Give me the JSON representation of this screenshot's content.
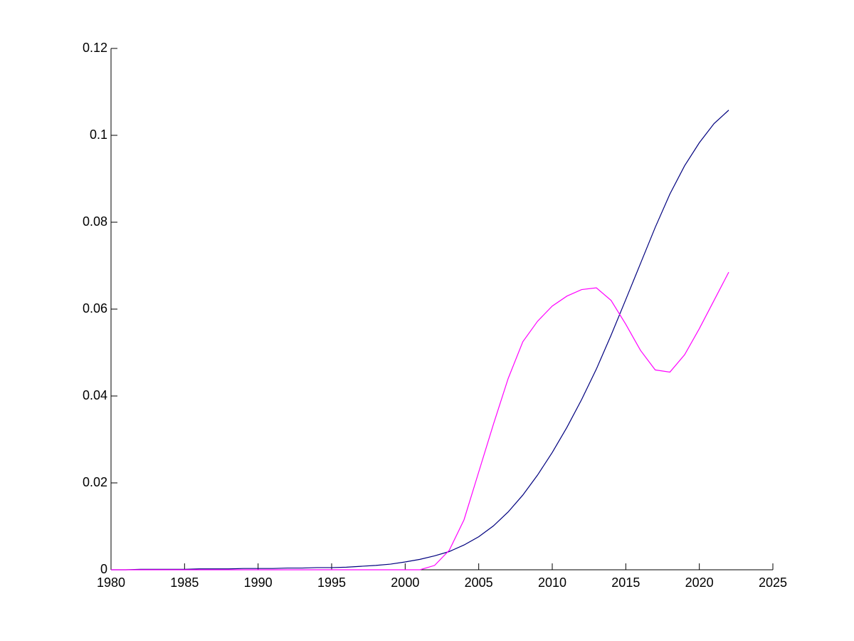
{
  "chart_data": {
    "type": "line",
    "x": [
      1980,
      1981,
      1982,
      1983,
      1984,
      1985,
      1986,
      1987,
      1988,
      1989,
      1990,
      1991,
      1992,
      1993,
      1994,
      1995,
      1996,
      1997,
      1998,
      1999,
      2000,
      2001,
      2002,
      2003,
      2004,
      2005,
      2006,
      2007,
      2008,
      2009,
      2010,
      2011,
      2012,
      2013,
      2014,
      2015,
      2016,
      2017,
      2018,
      2019,
      2020,
      2021,
      2022
    ],
    "series": [
      {
        "color": "#00007f",
        "values": [
          0,
          0,
          0.0001,
          0.0001,
          0.0001,
          0.0001,
          0.0002,
          0.0002,
          0.0002,
          0.0003,
          0.0003,
          0.0003,
          0.0004,
          0.0004,
          0.0005,
          0.0005,
          0.0006,
          0.0008,
          0.001,
          0.0013,
          0.0018,
          0.0024,
          0.0032,
          0.0042,
          0.0057,
          0.0076,
          0.0101,
          0.0133,
          0.0172,
          0.0218,
          0.027,
          0.0328,
          0.0392,
          0.0462,
          0.054,
          0.0622,
          0.0705,
          0.0788,
          0.0865,
          0.093,
          0.0983,
          0.1027,
          0.1058
        ]
      },
      {
        "color": "#ff00ff",
        "values": [
          0,
          0,
          0,
          0,
          0,
          0,
          0,
          0,
          0,
          0,
          0,
          0,
          0,
          0,
          0,
          0,
          0,
          0,
          0,
          0,
          0,
          0,
          0.001,
          0.0045,
          0.0115,
          0.0225,
          0.0335,
          0.044,
          0.0525,
          0.0572,
          0.0607,
          0.063,
          0.0645,
          0.0649,
          0.062,
          0.0565,
          0.0505,
          0.046,
          0.0455,
          0.0495,
          0.0555,
          0.062,
          0.0685
        ]
      }
    ],
    "xlim": [
      1980,
      2025
    ],
    "xticks": [
      1980,
      1985,
      1990,
      1995,
      2000,
      2005,
      2010,
      2015,
      2020,
      2025
    ],
    "ylim": [
      0,
      0.12
    ],
    "yticks": [
      0,
      0.02,
      0.04,
      0.06,
      0.08,
      0.1,
      0.12
    ],
    "grid": false
  }
}
